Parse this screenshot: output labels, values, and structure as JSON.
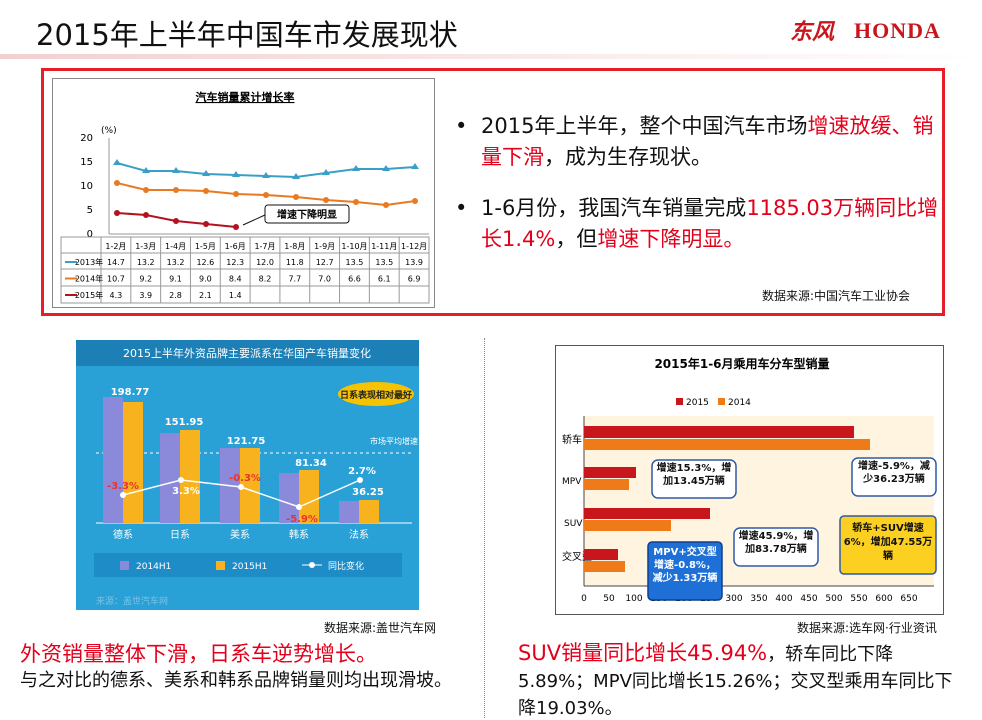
{
  "header": {
    "title": "2015年上半年中国车市发展现状",
    "logo_cn": "东风",
    "logo_en": "HONDA"
  },
  "top_chart": {
    "title": "汽车销量累计增长率",
    "y_unit": "(%)",
    "y_ticks": [
      "20",
      "15",
      "10",
      "5",
      "0"
    ],
    "months": [
      "1-2月",
      "1-3月",
      "1-4月",
      "1-5月",
      "1-6月",
      "1-7月",
      "1-8月",
      "1-9月",
      "1-10月",
      "1-11月",
      "1-12月"
    ],
    "annotation": "增速下降明显",
    "rows": [
      {
        "label": "2013年",
        "cells": [
          "14.7",
          "13.2",
          "13.2",
          "12.6",
          "12.3",
          "12.0",
          "11.8",
          "12.7",
          "13.5",
          "13.5",
          "13.9"
        ]
      },
      {
        "label": "2014年",
        "cells": [
          "10.7",
          "9.2",
          "9.1",
          "9.0",
          "8.4",
          "8.2",
          "7.7",
          "7.0",
          "6.6",
          "6.1",
          "6.9"
        ]
      },
      {
        "label": "2015年",
        "cells": [
          "4.3",
          "3.9",
          "2.8",
          "2.1",
          "1.4",
          "",
          "",
          "",
          "",
          "",
          ""
        ]
      }
    ]
  },
  "top_text": {
    "b1_pre": "2015年上半年，整个中国汽车市场",
    "b1_red": "增速放缓、销量下滑",
    "b1_post": "，成为生存现状。",
    "b2_pre": "1-6月份，我国汽车销量完成",
    "b2_red1": "1185.03万辆同比增长1.4%",
    "b2_mid": "，但",
    "b2_red2": "增速下降明显。",
    "source": "数据来源:中国汽车工业协会",
    "bullet_glyph": "•"
  },
  "mid_chart": {
    "title": "2015上半年外资品牌主要派系在华国产车销量变化",
    "badge": "日系表现相对最好",
    "market_label": "市场平均增速",
    "groups": [
      {
        "name": "德系",
        "v2014": "198.77",
        "change": "-3.3%"
      },
      {
        "name": "日系",
        "v2015": "151.95",
        "change": "3.3%"
      },
      {
        "name": "美系",
        "v2015": "121.75",
        "change": "-0.3%"
      },
      {
        "name": "韩系",
        "v2015": "81.34",
        "change": "-5.9%"
      },
      {
        "name": "法系",
        "v2015": "36.25",
        "change": "2.7%"
      }
    ],
    "legend": {
      "a": "2014H1",
      "b": "2015H1",
      "c": "同比变化"
    },
    "watermark": "来源：盖世汽车网",
    "source": "数据来源:盖世汽车网"
  },
  "right_chart": {
    "title": "2015年1-6月乘用车分车型销量",
    "legend_2015": "2015",
    "legend_2014": "2014",
    "categories": [
      "轿车",
      "MPV",
      "SUV",
      "交叉型"
    ],
    "x_ticks": [
      "0",
      "50",
      "100",
      "150",
      "200",
      "250",
      "300",
      "350",
      "400",
      "450",
      "500",
      "550",
      "600",
      "650"
    ],
    "callouts": {
      "mpv": "增速15.3%，增加13.45万辆",
      "sedan": "增速-5.9%，减少36.23万辆",
      "suv": "增速45.9%，增加83.78万辆",
      "sedan_suv": "轿车+SUV增速6%，增加47.55万辆",
      "mpv_cross": "MPV+交叉型增速-0.8%，减少1.33万辆"
    },
    "source": "数据来源:选车网·行业资讯"
  },
  "captions": {
    "left_head": "外资销量整体下滑，日系车逆势增长。",
    "left_body": "与之对比的德系、美系和韩系品牌销量则均出现滑坡。",
    "right_head_red": "SUV销量同比增长45.94%",
    "right_rest": "，轿车同比下降5.89%；MPV同比增长15.26%；交叉型乘用车同比下降19.03%。"
  }
}
